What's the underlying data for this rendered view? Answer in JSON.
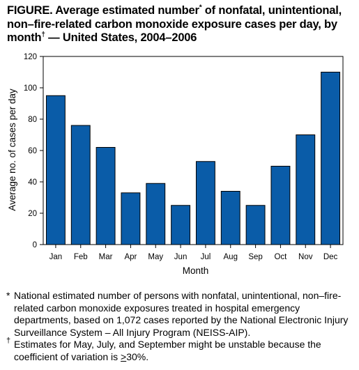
{
  "title": {
    "prefix": "FIGURE. Average estimated number",
    "star": "*",
    "middle": " of nonfatal, unintentional, non–fire-related carbon monoxide exposure cases per day, by month",
    "dagger": "†",
    "suffix": " — United States, 2004–2006"
  },
  "chart_data": {
    "type": "bar",
    "categories": [
      "Jan",
      "Feb",
      "Mar",
      "Apr",
      "May",
      "Jun",
      "Jul",
      "Aug",
      "Sep",
      "Oct",
      "Nov",
      "Dec"
    ],
    "values": [
      95,
      76,
      62,
      33,
      39,
      25,
      53,
      34,
      25,
      50,
      70,
      110
    ],
    "xlabel": "Month",
    "ylabel": "Average no. of cases per day",
    "ylim": [
      0,
      120
    ],
    "yticks": [
      "0",
      "20",
      "40",
      "60",
      "80",
      "100",
      "120"
    ],
    "grid": false,
    "bar_color": "#0a5ca8"
  },
  "footnotes": [
    {
      "mark": "*",
      "text": "National estimated number of persons with nonfatal, unintentional, non–fire-related carbon monoxide exposures treated in hospital emergency departments, based on 1,072 cases reported by the National Electronic Injury Surveillance System – All Injury Program (NEISS-AIP)."
    },
    {
      "mark": "†",
      "text_before": "Estimates for May, July, and September might be unstable because the coefficient of variation is ",
      "ge_symbol": ">",
      "text_after": "30%."
    }
  ]
}
